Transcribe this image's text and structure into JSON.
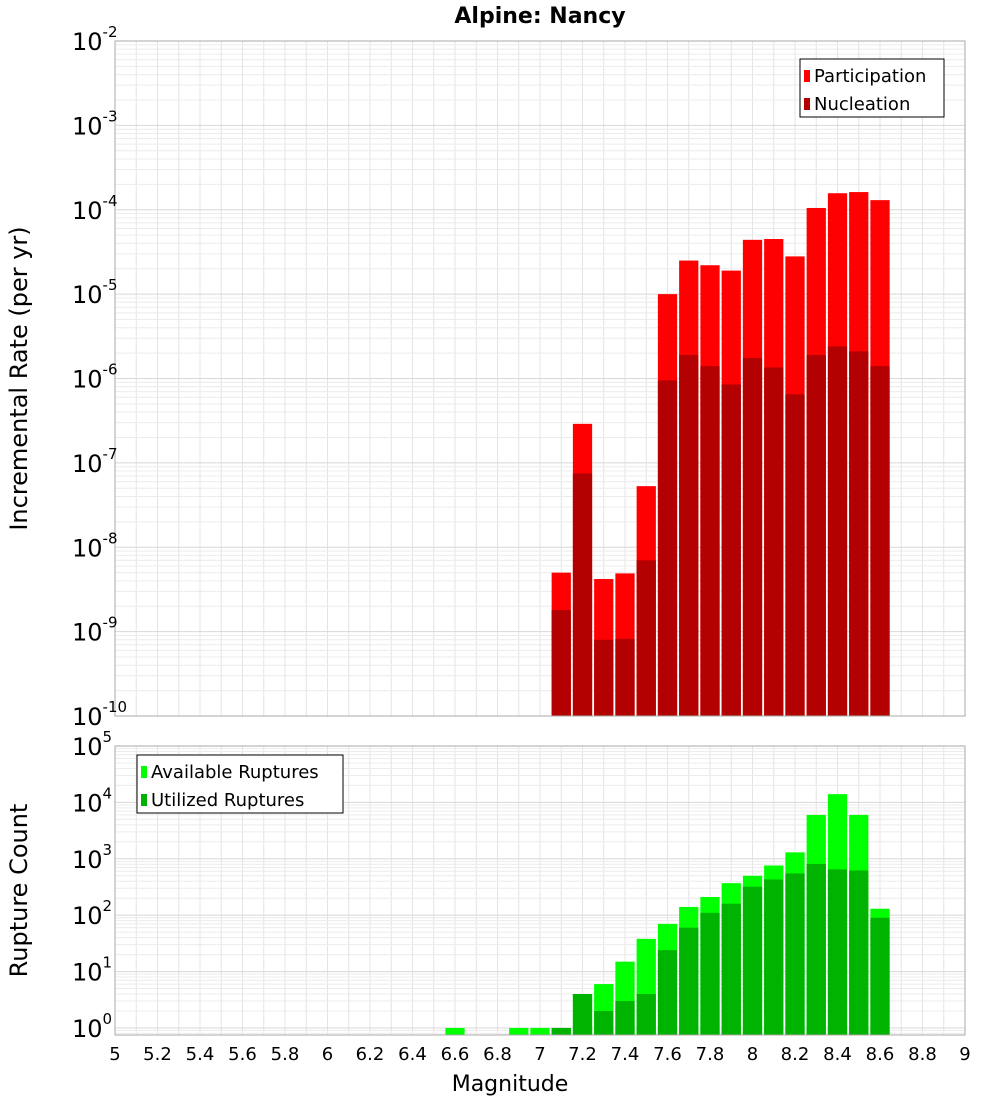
{
  "chart_data": [
    {
      "type": "bar",
      "title": "Alpine: Nancy",
      "ylabel": "Incremental Rate (per yr)",
      "xlabel": "",
      "y_scale": "log",
      "ylim": [
        1e-10,
        0.01
      ],
      "xlim": [
        5,
        9
      ],
      "grid": true,
      "legend_position": "top-right",
      "bar_width": 0.1,
      "x": [
        7.1,
        7.2,
        7.3,
        7.4,
        7.5,
        7.6,
        7.7,
        7.8,
        7.9,
        8.0,
        8.1,
        8.2,
        8.3,
        8.4,
        8.5,
        8.6
      ],
      "series": [
        {
          "name": "Participation",
          "color": "#ff0000",
          "values": [
            5e-09,
            2.9e-07,
            4.2e-09,
            4.9e-09,
            5.3e-08,
            1e-05,
            2.5e-05,
            2.2e-05,
            1.9e-05,
            4.4e-05,
            4.5e-05,
            2.8e-05,
            0.000105,
            0.000157,
            0.000162,
            0.00013
          ]
        },
        {
          "name": "Nucleation",
          "color": "#b30000",
          "values": [
            1.8e-09,
            7.5e-08,
            8e-10,
            8.2e-10,
            7e-09,
            9.5e-07,
            1.9e-06,
            1.4e-06,
            8.5e-07,
            1.75e-06,
            1.35e-06,
            6.5e-07,
            1.9e-06,
            2.4e-06,
            2.1e-06,
            1.4e-06
          ]
        }
      ]
    },
    {
      "type": "bar",
      "title": "",
      "ylabel": "Rupture Count",
      "xlabel": "Magnitude",
      "y_scale": "log",
      "ylim": [
        0.75,
        100000
      ],
      "xlim": [
        5,
        9
      ],
      "x_ticks": [
        "5",
        "5.2",
        "5.4",
        "5.6",
        "5.8",
        "6",
        "6.2",
        "6.4",
        "6.6",
        "6.8",
        "7",
        "7.2",
        "7.4",
        "7.6",
        "7.8",
        "8",
        "8.2",
        "8.4",
        "8.6",
        "8.8",
        "9"
      ],
      "grid": true,
      "legend_position": "top-left",
      "bar_width": 0.1,
      "x": [
        6.6,
        6.9,
        7.0,
        7.1,
        7.2,
        7.3,
        7.4,
        7.5,
        7.6,
        7.7,
        7.8,
        7.9,
        8.0,
        8.1,
        8.2,
        8.3,
        8.4,
        8.5,
        8.6
      ],
      "series": [
        {
          "name": "Available Ruptures",
          "color": "#00ff00",
          "values": [
            1,
            1,
            1,
            1,
            4,
            6,
            15,
            38,
            70,
            140,
            210,
            370,
            500,
            760,
            1300,
            6000,
            14000,
            6000,
            130
          ]
        },
        {
          "name": "Utilized Ruptures",
          "color": "#00b300",
          "values": [
            0,
            0,
            0,
            1,
            4,
            2,
            3,
            4,
            24,
            60,
            110,
            160,
            320,
            430,
            550,
            810,
            650,
            620,
            90
          ]
        }
      ]
    }
  ]
}
